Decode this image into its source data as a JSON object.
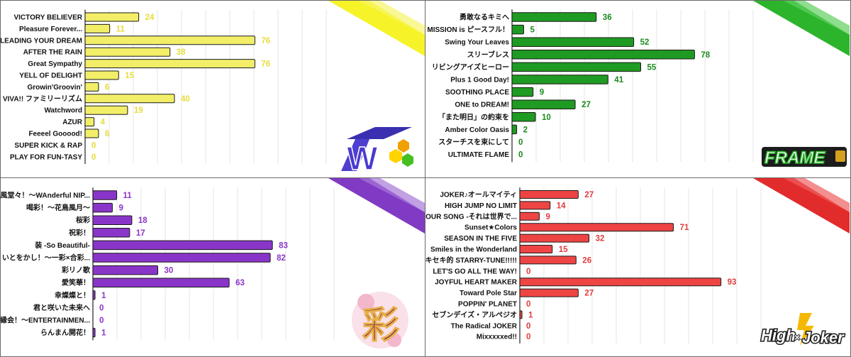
{
  "chart_data": [
    {
      "type": "bar",
      "orientation": "horizontal",
      "logo": "W",
      "color": "#f2ee68",
      "label_color": "#e6dd3a",
      "categories": [
        "VICTORY BELIEVER",
        "Pleasure Forever...",
        "LEADING YOUR DREAM",
        "AFTER THE RAIN",
        "Great Sympathy",
        "YELL OF DELIGHT",
        "Growin'Groovin'",
        "VIVA!! ファミリーリズム",
        "Watchword",
        "AZUR",
        "Feeeel Gooood!",
        "SUPER KICK & RAP",
        "PLAY FOR FUN-TASY"
      ],
      "values": [
        24,
        11,
        76,
        38,
        76,
        15,
        6,
        40,
        19,
        4,
        6,
        0,
        0
      ],
      "xlim": [
        0,
        100
      ],
      "grid": true
    },
    {
      "type": "bar",
      "orientation": "horizontal",
      "logo": "FRAME",
      "color": "#1f9a22",
      "label_color": "#1a8a1d",
      "categories": [
        "勇敢なるキミへ",
        "MISSION is ピースフル！",
        "Swing Your Leaves",
        "スリーブレス",
        "リビングアイズヒーロー",
        "Plus 1 Good Day!",
        "SOOTHING PLACE",
        "ONE to DREAM!",
        "「また明日」の約束を",
        "Amber Color Oasis",
        "スターチスを束にして",
        "ULTIMATE FLAME"
      ],
      "values": [
        36,
        5,
        52,
        78,
        55,
        41,
        9,
        27,
        10,
        2,
        0,
        0
      ],
      "xlim": [
        0,
        100
      ],
      "grid": true
    },
    {
      "type": "bar",
      "orientation": "horizontal",
      "logo": "彩",
      "color": "#8a35c9",
      "label_color": "#8a35c9",
      "categories": [
        "和風堂々！〜WAnderful NIP...",
        "喝彩！〜花鳥風月〜",
        "桜彩",
        "祝彩！",
        "装 -So Beautiful-",
        "いとをかし！〜一彩×合彩...",
        "彩リノ歌",
        "愛笑華！",
        "幸燦燦と！",
        "君と咲いた未来へ",
        "縁会！〜ENTERTAINMEN...",
        "らんまん開花！"
      ],
      "values": [
        11,
        9,
        18,
        17,
        83,
        82,
        30,
        63,
        1,
        0,
        0,
        1
      ],
      "xlim": [
        0,
        100
      ],
      "grid": true
    },
    {
      "type": "bar",
      "orientation": "horizontal",
      "logo": "High×Joker",
      "color": "#ef4444",
      "label_color": "#e23b3b",
      "categories": [
        "JOKER♪オールマイティ",
        "HIGH JUMP NO LIMIT",
        "OUR SONG -それは世界で...",
        "Sunset★Colors",
        "SEASON IN THE FIVE",
        "Smiles in the Wonderland",
        "キセキ的 STARRY-TUNE!!!!!",
        "LET'S GO ALL THE WAY!",
        "JOYFUL HEART MAKER",
        "Toward Pole Star",
        "POPPIN' PLANET",
        "セブンデイズ・アルペジオ",
        "The Radical JOKER",
        "Mixxxxxed!!"
      ],
      "values": [
        27,
        14,
        9,
        71,
        32,
        15,
        26,
        0,
        93,
        27,
        0,
        1,
        0,
        0
      ],
      "xlim": [
        0,
        100
      ],
      "grid": true
    }
  ],
  "logos": {
    "w": "W",
    "frame": "FRAME",
    "sai": "彩",
    "highjoker_left": "High",
    "highjoker_x": "×",
    "highjoker_right": "Joker"
  },
  "accent_colors": {
    "w_slash": "#f5f21e",
    "frame_slash": "#22b022",
    "sai_slash": "#7a2fc0",
    "hj_slash": "#e02020"
  }
}
